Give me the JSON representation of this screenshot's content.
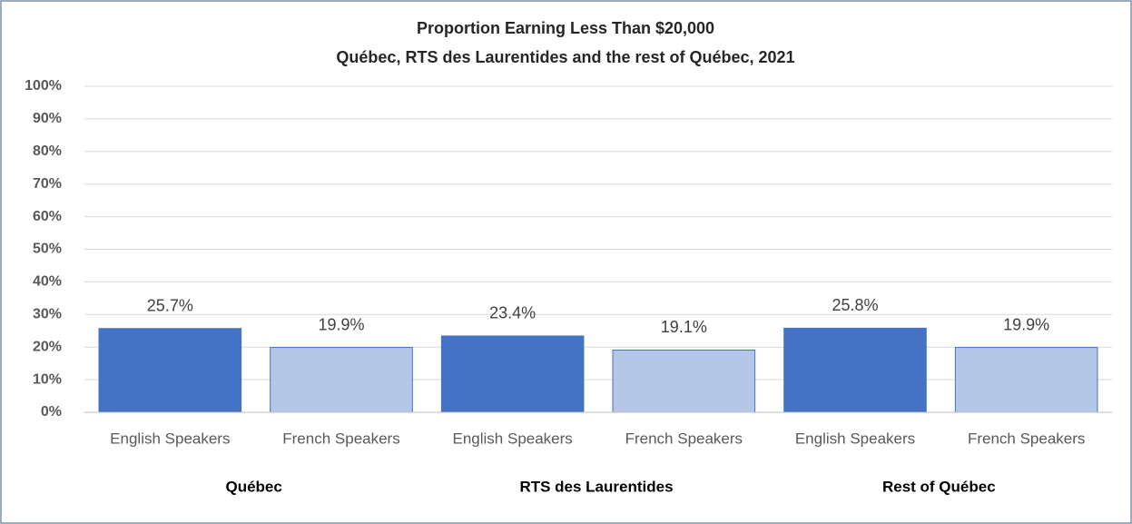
{
  "chart_data": {
    "type": "bar",
    "title": "Proportion Earning Less Than $20,000",
    "subtitle": "Québec, RTS des Laurentides and the rest of Québec, 2021",
    "categories": [
      "Québec",
      "RTS des Laurentides",
      "Rest of Québec"
    ],
    "series": [
      {
        "name": "English Speakers",
        "color": "#4472c4",
        "values": [
          25.7,
          23.4,
          25.8
        ],
        "value_labels": [
          "25.7%",
          "23.4%",
          "25.8%"
        ]
      },
      {
        "name": "French Speakers",
        "color": "#b4c7e7",
        "values": [
          19.9,
          19.1,
          19.9
        ],
        "value_labels": [
          "19.9%",
          "19.1%",
          "19.9%"
        ]
      }
    ],
    "ylim": [
      0,
      100
    ],
    "yticks": [
      {
        "value": 0,
        "label": "0%"
      },
      {
        "value": 10,
        "label": "10%"
      },
      {
        "value": 20,
        "label": "20%"
      },
      {
        "value": 30,
        "label": "30%"
      },
      {
        "value": 40,
        "label": "40%"
      },
      {
        "value": 50,
        "label": "50%"
      },
      {
        "value": 60,
        "label": "60%"
      },
      {
        "value": 70,
        "label": "70%"
      },
      {
        "value": 80,
        "label": "80%"
      },
      {
        "value": 90,
        "label": "90%"
      },
      {
        "value": 100,
        "label": "100%"
      }
    ],
    "grid": true
  }
}
